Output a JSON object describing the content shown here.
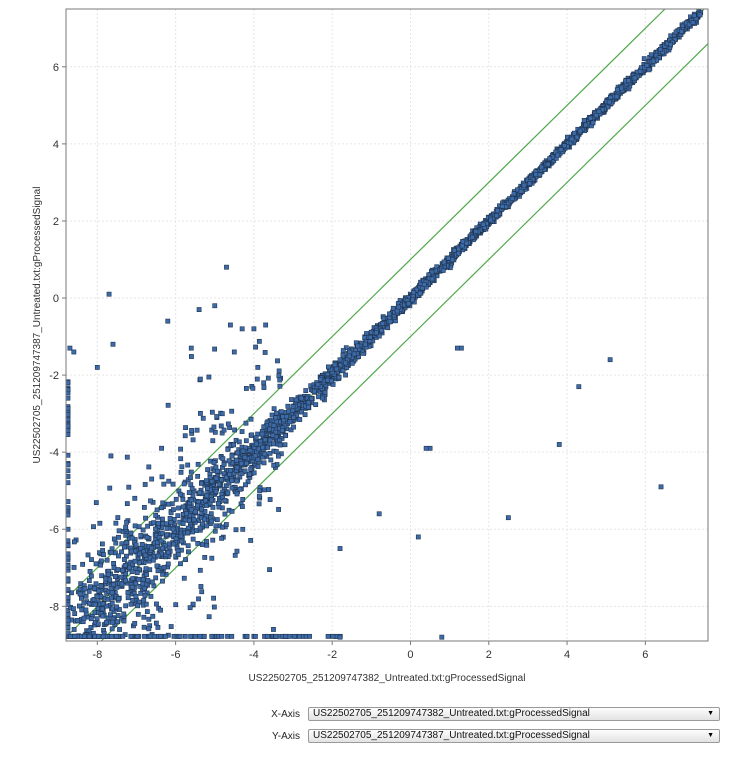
{
  "chart_data": {
    "type": "scatter",
    "title": "",
    "xlabel": "US22502705_251209747382_Untreated.txt:gProcessedSignal",
    "ylabel": "US22502705_251209747387_Untreated.txt:gProcessedSignal",
    "xlim": [
      -8.8,
      7.6
    ],
    "ylim": [
      -8.9,
      7.5
    ],
    "x_ticks": [
      -8,
      -6,
      -4,
      -2,
      0,
      2,
      4,
      6
    ],
    "y_ticks": [
      -8,
      -6,
      -4,
      -2,
      0,
      2,
      4,
      6
    ],
    "grid": true,
    "marker_color": "#3d6aa8",
    "marker_edge_color": "#1f3550",
    "fold_line_color": "#4fa84a",
    "reference_lines": [
      {
        "slope": 1,
        "intercept": 1
      },
      {
        "slope": 1,
        "intercept": 0
      },
      {
        "slope": 1,
        "intercept": -1
      }
    ],
    "points_note": "dense cloud along the diagonal y = x from about (-8.8,-8.8) to (7.4,7.4), widening at low values",
    "outliers": [
      [
        -4.7,
        0.8
      ],
      [
        -7.7,
        0.1
      ],
      [
        -5.4,
        -0.3
      ],
      [
        -5.0,
        -0.2
      ],
      [
        -6.2,
        -0.6
      ],
      [
        -4.6,
        -0.7
      ],
      [
        -4.3,
        -0.8
      ],
      [
        -4.0,
        -0.8
      ],
      [
        -3.7,
        -0.7
      ],
      [
        -7.6,
        -1.2
      ],
      [
        -8.7,
        -1.3
      ],
      [
        -8.6,
        -1.4
      ],
      [
        -5.6,
        -1.3
      ],
      [
        -4.5,
        -1.4
      ],
      [
        -8.0,
        -1.8
      ],
      [
        -3.9,
        -1.8
      ],
      [
        1.2,
        -1.3
      ],
      [
        1.3,
        -1.3
      ],
      [
        5.1,
        -1.6
      ],
      [
        4.3,
        -2.3
      ],
      [
        0.5,
        -3.9
      ],
      [
        0.4,
        -3.9
      ],
      [
        3.8,
        -3.8
      ],
      [
        -0.8,
        -5.6
      ],
      [
        2.5,
        -5.7
      ],
      [
        6.4,
        -4.9
      ],
      [
        0.2,
        -6.2
      ],
      [
        -1.8,
        -6.5
      ],
      [
        0.8,
        -8.8
      ],
      [
        -1.8,
        -8.8
      ],
      [
        -3.5,
        -8.6
      ]
    ]
  },
  "controls": {
    "x_axis_label": "X-Axis",
    "x_axis_value": "US22502705_251209747382_Untreated.txt:gProcessedSignal",
    "y_axis_label": "Y-Axis",
    "y_axis_value": "US22502705_251209747387_Untreated.txt:gProcessedSignal",
    "dropdown_icon": "chevron-down-icon"
  }
}
